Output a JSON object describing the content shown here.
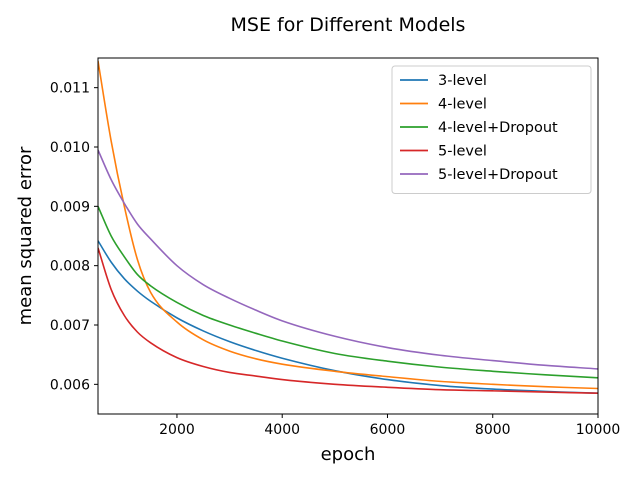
{
  "chart_data": {
    "type": "line",
    "title": "MSE for Different Models",
    "xlabel": "epoch",
    "ylabel": "mean squared error",
    "xlim": [
      500,
      10000
    ],
    "ylim": [
      0.0055,
      0.0115
    ],
    "xticks": [
      2000,
      4000,
      6000,
      8000,
      10000
    ],
    "xtick_labels": [
      "2000",
      "4000",
      "6000",
      "8000",
      "10000"
    ],
    "yticks": [
      0.006,
      0.007,
      0.008,
      0.009,
      0.01,
      0.011
    ],
    "ytick_labels": [
      "0.006",
      "0.007",
      "0.008",
      "0.009",
      "0.010",
      "0.011"
    ],
    "grid": false,
    "legend_position": "top-right",
    "x": [
      500,
      750,
      1000,
      1250,
      1500,
      2000,
      2500,
      3000,
      3500,
      4000,
      5000,
      6000,
      7000,
      8000,
      9000,
      10000
    ],
    "series": [
      {
        "name": "3-level",
        "color": "#1f77b4",
        "values": [
          0.00842,
          0.00806,
          0.00778,
          0.00757,
          0.0074,
          0.00712,
          0.0069,
          0.00672,
          0.00657,
          0.00644,
          0.00623,
          0.00608,
          0.00598,
          0.00592,
          0.00588,
          0.00585
        ]
      },
      {
        "name": "4-level",
        "color": "#ff7f0e",
        "values": [
          0.01145,
          0.0101,
          0.009,
          0.0081,
          0.00755,
          0.00705,
          0.00675,
          0.00656,
          0.00643,
          0.00634,
          0.00622,
          0.00613,
          0.00605,
          0.006,
          0.00596,
          0.00593
        ]
      },
      {
        "name": "4-level+Dropout",
        "color": "#2ca02c",
        "values": [
          0.009,
          0.0085,
          0.00815,
          0.00785,
          0.00766,
          0.00738,
          0.00716,
          0.007,
          0.00686,
          0.00673,
          0.00652,
          0.00639,
          0.00629,
          0.00622,
          0.00616,
          0.00611
        ]
      },
      {
        "name": "5-level",
        "color": "#d62728",
        "values": [
          0.0083,
          0.0076,
          0.00716,
          0.00688,
          0.0067,
          0.00645,
          0.0063,
          0.0062,
          0.00614,
          0.00608,
          0.006,
          0.00595,
          0.00591,
          0.00589,
          0.00587,
          0.00585
        ]
      },
      {
        "name": "5-level+Dropout",
        "color": "#9467bd",
        "values": [
          0.00995,
          0.00945,
          0.00905,
          0.0087,
          0.00845,
          0.008,
          0.00768,
          0.00745,
          0.00725,
          0.00707,
          0.00681,
          0.00662,
          0.00649,
          0.0064,
          0.00632,
          0.00626
        ]
      }
    ]
  }
}
